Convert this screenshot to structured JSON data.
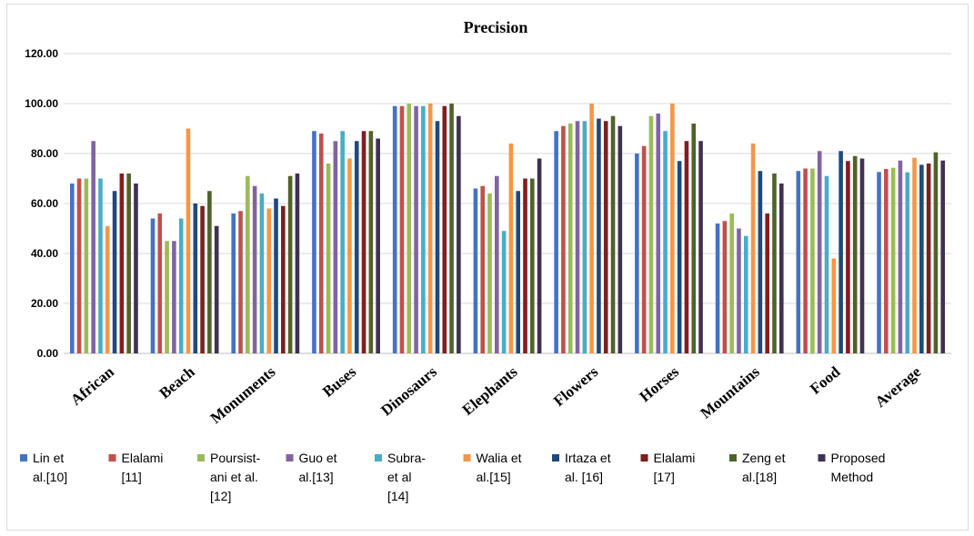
{
  "chart_data": {
    "type": "bar",
    "title": "Precision",
    "xlabel": "",
    "ylabel": "",
    "ylim": [
      0,
      120
    ],
    "yticks": [
      "0.00",
      "20.00",
      "40.00",
      "60.00",
      "80.00",
      "100.00",
      "120.00"
    ],
    "grid": true,
    "legend_position": "bottom",
    "categories": [
      "African",
      "Beach",
      "Monuments",
      "Buses",
      "Dinosaurs",
      "Elephants",
      "Flowers",
      "Horses",
      "Mountains",
      "Food",
      "Average"
    ],
    "series": [
      {
        "name": "Lin et al.[10]",
        "legend_lines": [
          "Lin et",
          "al.[10]"
        ],
        "color": "#4472c4",
        "values": [
          68,
          54,
          56,
          89,
          99,
          66,
          89,
          80,
          52,
          73,
          72.6
        ]
      },
      {
        "name": "Elalami [11]",
        "legend_lines": [
          "Elalami",
          "[11]"
        ],
        "color": "#c0504d",
        "values": [
          70,
          56,
          57,
          88,
          99,
          67,
          91,
          83,
          53,
          74,
          73.8
        ]
      },
      {
        "name": "Poursistani et al. [12]",
        "legend_lines": [
          "Poursist-",
          "ani et al.",
          "[12]"
        ],
        "color": "#9bbb59",
        "values": [
          70,
          45,
          71,
          76,
          100,
          64,
          92,
          95,
          56,
          74,
          74.3
        ]
      },
      {
        "name": "Guo et al.[13]",
        "legend_lines": [
          "Guo et",
          "al.[13]"
        ],
        "color": "#8064a2",
        "values": [
          85,
          45,
          67,
          85,
          99,
          71,
          93,
          96,
          50,
          81,
          77.2
        ]
      },
      {
        "name": "Subra- et al [14]",
        "legend_lines": [
          "Subra-",
          "et al",
          "[14]"
        ],
        "color": "#4bacc6",
        "values": [
          70,
          54,
          64,
          89,
          99,
          49,
          93,
          89,
          47,
          71,
          72.5
        ]
      },
      {
        "name": "Walia et al.[15]",
        "legend_lines": [
          "Walia et",
          "al.[15]"
        ],
        "color": "#f79646",
        "values": [
          51,
          90,
          58,
          78,
          100,
          84,
          100,
          100,
          84,
          38,
          78.3
        ]
      },
      {
        "name": "Irtaza et al. [16]",
        "legend_lines": [
          "Irtaza et",
          "al. [16]"
        ],
        "color": "#1f497d",
        "values": [
          65,
          60,
          62,
          85,
          93,
          65,
          94,
          77,
          73,
          81,
          75.5
        ]
      },
      {
        "name": "Elalami [17]",
        "legend_lines": [
          "Elalami",
          "[17]"
        ],
        "color": "#7f1f1f",
        "values": [
          72,
          59,
          59,
          89,
          99,
          70,
          93,
          85,
          56,
          77,
          76
        ]
      },
      {
        "name": "Zeng et al.[18]",
        "legend_lines": [
          "Zeng et",
          "al.[18]"
        ],
        "color": "#4f6228",
        "values": [
          72,
          65,
          71,
          89,
          100,
          70,
          95,
          92,
          72,
          79,
          80.5
        ]
      },
      {
        "name": "Proposed Method",
        "legend_lines": [
          "Proposed",
          "Method"
        ],
        "color": "#403151",
        "values": [
          68,
          51,
          72,
          86,
          95,
          78,
          91,
          85,
          68,
          78,
          77.2
        ]
      }
    ]
  }
}
